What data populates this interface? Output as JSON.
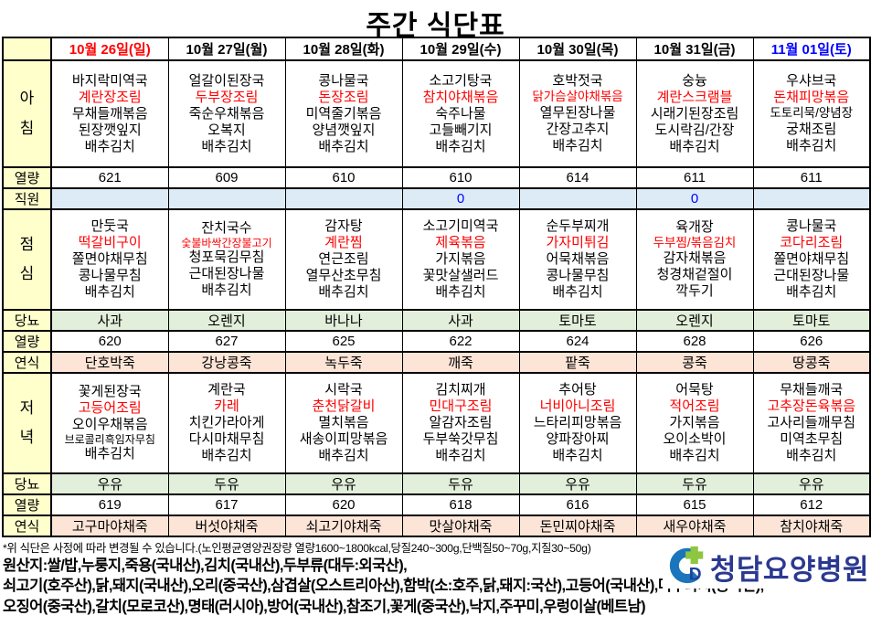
{
  "title": "주간 식단표",
  "header": {
    "days": [
      "10월 26일(일)",
      "10월 27일(월)",
      "10월 28일(화)",
      "10월 29일(수)",
      "10월 30일(목)",
      "10월 31일(금)",
      "11월 01일(토)"
    ],
    "day_colors": [
      "#FF0000",
      "#000000",
      "#000000",
      "#000000",
      "#000000",
      "#000000",
      "#0000FF"
    ]
  },
  "row_labels": {
    "breakfast": "아침",
    "lunch": "점심",
    "dinner": "저녁",
    "calories": "열량",
    "staff": "직원",
    "diabetes": "당뇨",
    "soft": "연식"
  },
  "meals": {
    "breakfast": {
      "items": [
        [
          "바지락미역국",
          "계란장조림",
          "무채들깨볶음",
          "된장깻잎지",
          "배추김치"
        ],
        [
          "얼갈이된장국",
          "두부장조림",
          "죽순우채볶음",
          "오복지",
          "배추김치"
        ],
        [
          "콩나물국",
          "돈장조림",
          "미역줄기볶음",
          "양념깻잎지",
          "배추김치"
        ],
        [
          "소고기탕국",
          "참치야채볶음",
          "숙주나물",
          "고들빼기지",
          "배추김치"
        ],
        [
          "호박젓국",
          "닭가슴살야채볶음",
          "열무된장나물",
          "간장고추지",
          "배추김치"
        ],
        [
          "숭늉",
          "계란스크램블",
          "시래기된장조림",
          "도시락김/간장",
          "배추김치"
        ],
        [
          "우샤브국",
          "돈채피망볶음",
          "도토리묵/양념장",
          "궁채조림",
          "배추김치"
        ]
      ],
      "calories": [
        "621",
        "609",
        "610",
        "610",
        "614",
        "611",
        "611"
      ]
    },
    "staff": {
      "values": [
        "",
        "",
        "",
        "0",
        "",
        "0",
        ""
      ]
    },
    "lunch": {
      "items": [
        [
          "만둣국",
          "떡갈비구이",
          "쫄면야채무침",
          "콩나물무침",
          "배추김치"
        ],
        [
          "잔치국수",
          "숯불바싹간장불고기",
          "청포묵김무침",
          "근대된장나물",
          "배추김치"
        ],
        [
          "감자탕",
          "계란찜",
          "연근조림",
          "열무산초무침",
          "배추김치"
        ],
        [
          "소고기미역국",
          "제육볶음",
          "가지볶음",
          "꽃맛살샐러드",
          "배추김치"
        ],
        [
          "순두부찌개",
          "가자미튀김",
          "어묵채볶음",
          "콩나물무침",
          "배추김치"
        ],
        [
          "육개장",
          "두부찜/볶음김치",
          "감자채볶음",
          "청경채겉절이",
          "깍두기"
        ],
        [
          "콩나물국",
          "코다리조림",
          "쫄면야채무침",
          "근대된장나물",
          "배추김치"
        ]
      ],
      "diabetes": [
        "사과",
        "오렌지",
        "바나나",
        "사과",
        "토마토",
        "오렌지",
        "토마토"
      ],
      "calories": [
        "620",
        "627",
        "625",
        "622",
        "624",
        "628",
        "626"
      ],
      "soft": [
        "단호박죽",
        "강낭콩죽",
        "녹두죽",
        "깨죽",
        "팥죽",
        "콩죽",
        "땅콩죽"
      ]
    },
    "dinner": {
      "items": [
        [
          "꽃게된장국",
          "고등어조림",
          "오이우채볶음",
          "브로콜리흑임자무침",
          "배추김치"
        ],
        [
          "계란국",
          "카레",
          "치킨가라아게",
          "다시마채무침",
          "배추김치"
        ],
        [
          "시락국",
          "춘천닭갈비",
          "멸치볶음",
          "새송이피망볶음",
          "배추김치"
        ],
        [
          "김치찌개",
          "민대구조림",
          "알감자조림",
          "두부쑥갓무침",
          "배추김치"
        ],
        [
          "추어탕",
          "너비아니조림",
          "느타리피망볶음",
          "양파장아찌",
          "배추김치"
        ],
        [
          "어묵탕",
          "적어조림",
          "가지볶음",
          "오이소박이",
          "배추김치"
        ],
        [
          "무채들깨국",
          "고추장돈육볶음",
          "고사리들깨무침",
          "미역초무침",
          "배추김치"
        ]
      ],
      "diabetes": [
        "우유",
        "두유",
        "우유",
        "두유",
        "우유",
        "두유",
        "우유"
      ],
      "calories": [
        "619",
        "617",
        "620",
        "618",
        "616",
        "615",
        "612"
      ],
      "soft": [
        "고구마야채죽",
        "버섯야채죽",
        "쇠고기야채죽",
        "맛살야채죽",
        "돈민찌야채죽",
        "새우야채죽",
        "참치야채죽"
      ]
    }
  },
  "footer": {
    "note": "*위 식단은 사정에 따라 변경될 수 있습니다.(노인평균영양권장량 열량1600~1800kcal,당질240~300g,단백질50~70g,지질30~50g)",
    "origin_lines": [
      "원산지:쌀/밥,누룽지,죽용(국내산),김치(국내산),두부류(대두:외국산),",
      "쇠고기(호주산),닭,돼지(국내산),오리(중국산),삼겹살(오스트리아산),함박(소:호주,닭,돼지:국산),고등어(국내산),미꾸라지(중국산),",
      "오징어(중국산),갈치(모로코산),명태(러시아),방어(국내산),참조기,꽃게(중국산),낙지,주꾸미,우렁이살(베트남)"
    ],
    "logo_text": "청담요양병원"
  },
  "colors": {
    "highlight_red": "#FF0000",
    "highlight_blue": "#0000FF",
    "label_bg": "#FFFFCC",
    "staff_row_bg": "#DDEBF7",
    "diabetes_row_bg": "#E2EFDA",
    "soft_row_bg": "#FCE4D6",
    "logo_navy": "#2B3990",
    "logo_blue": "#1B75BC",
    "logo_green": "#8DC63F"
  }
}
